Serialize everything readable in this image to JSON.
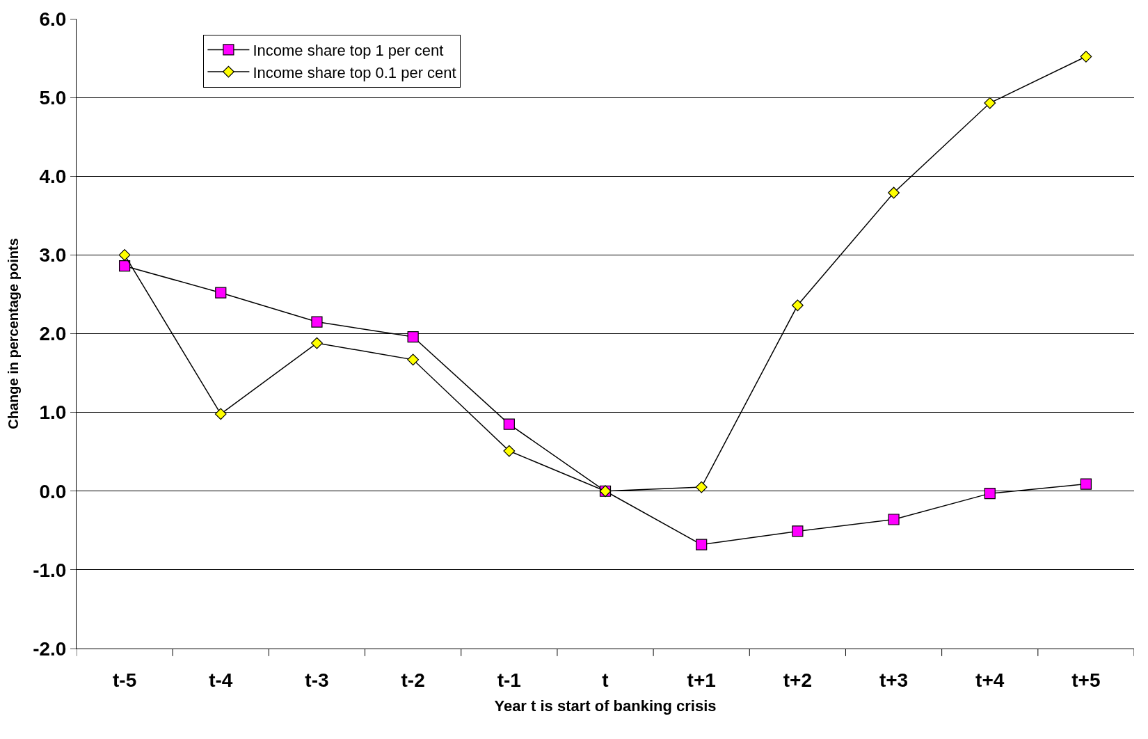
{
  "chart_data": {
    "type": "line",
    "xlabel": "Year t is start of banking crisis",
    "ylabel": "Change in percentage points",
    "categories": [
      "t-5",
      "t-4",
      "t-3",
      "t-2",
      "t-1",
      "t",
      "t+1",
      "t+2",
      "t+3",
      "t+4",
      "t+5"
    ],
    "series": [
      {
        "name": "Income share top 1 per cent",
        "color": "#ff00ff",
        "marker": "square",
        "values": [
          2.86,
          2.52,
          2.15,
          1.96,
          0.85,
          0.0,
          -0.68,
          -0.51,
          -0.36,
          -0.03,
          0.09
        ]
      },
      {
        "name": "Income share top 0.1 per cent",
        "color": "#ffff00",
        "marker": "diamond",
        "values": [
          3.0,
          0.98,
          1.88,
          1.67,
          0.51,
          0.0,
          0.05,
          2.36,
          3.79,
          4.93,
          5.52
        ]
      }
    ],
    "ylim": [
      -2,
      6
    ],
    "yticks": [
      {
        "value": -2,
        "label": "-2.0"
      },
      {
        "value": -1,
        "label": "-1.0"
      },
      {
        "value": 0,
        "label": "0.0"
      },
      {
        "value": 1,
        "label": "1.0"
      },
      {
        "value": 2,
        "label": "2.0"
      },
      {
        "value": 3,
        "label": "3.0"
      },
      {
        "value": 4,
        "label": "4.0"
      },
      {
        "value": 5,
        "label": "5.0"
      },
      {
        "value": 6,
        "label": "6.0"
      }
    ],
    "grid": "y",
    "legend": "top",
    "line_style": "solid"
  }
}
